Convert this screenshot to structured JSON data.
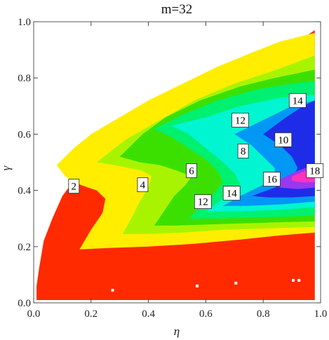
{
  "chart_data": {
    "type": "contour",
    "title": "m=32",
    "xlabel": "η",
    "ylabel": "γ",
    "xlim": [
      0.0,
      1.0
    ],
    "ylim": [
      0.0,
      1.0
    ],
    "x_ticks": [
      {
        "value": 0.0,
        "label": "0.0"
      },
      {
        "value": 0.2,
        "label": "0.2"
      },
      {
        "value": 0.4,
        "label": "0.4"
      },
      {
        "value": 0.6,
        "label": "0.6"
      },
      {
        "value": 0.8,
        "label": "0.8"
      },
      {
        "value": 1.0,
        "label": "1.0"
      }
    ],
    "y_ticks": [
      {
        "value": 0.0,
        "label": "0.0"
      },
      {
        "value": 0.2,
        "label": "0.2"
      },
      {
        "value": 0.4,
        "label": "0.4"
      },
      {
        "value": 0.6,
        "label": "0.6"
      },
      {
        "value": 0.8,
        "label": "0.8"
      },
      {
        "value": 1.0,
        "label": "1.0"
      }
    ],
    "grid": false,
    "levels": [
      {
        "level": 0,
        "color": "#ff2a00",
        "polygon": [
          [
            0.01,
            0.01
          ],
          [
            0.98,
            0.01
          ],
          [
            0.98,
            0.97
          ],
          [
            0.88,
            0.9
          ],
          [
            0.74,
            0.83
          ],
          [
            0.62,
            0.77
          ],
          [
            0.53,
            0.72
          ],
          [
            0.48,
            0.69
          ],
          [
            0.42,
            0.655
          ],
          [
            0.34,
            0.605
          ],
          [
            0.26,
            0.55
          ],
          [
            0.19,
            0.49
          ],
          [
            0.14,
            0.435
          ],
          [
            0.1,
            0.38
          ],
          [
            0.065,
            0.3
          ],
          [
            0.035,
            0.22
          ],
          [
            0.02,
            0.13
          ],
          [
            0.01,
            0.06
          ]
        ]
      },
      {
        "level": 2,
        "color": "#ffee00",
        "polygon": [
          [
            0.08,
            0.49
          ],
          [
            0.14,
            0.55
          ],
          [
            0.2,
            0.6
          ],
          [
            0.3,
            0.66
          ],
          [
            0.4,
            0.72
          ],
          [
            0.52,
            0.78
          ],
          [
            0.64,
            0.84
          ],
          [
            0.76,
            0.89
          ],
          [
            0.86,
            0.93
          ],
          [
            0.98,
            0.96
          ],
          [
            0.98,
            0.25
          ],
          [
            0.86,
            0.24
          ],
          [
            0.72,
            0.225
          ],
          [
            0.56,
            0.21
          ],
          [
            0.4,
            0.2
          ],
          [
            0.26,
            0.195
          ],
          [
            0.16,
            0.19
          ],
          [
            0.2,
            0.26
          ],
          [
            0.24,
            0.32
          ],
          [
            0.25,
            0.37
          ],
          [
            0.22,
            0.4
          ],
          [
            0.19,
            0.41
          ],
          [
            0.15,
            0.425
          ],
          [
            0.11,
            0.45
          ]
        ]
      },
      {
        "level": 4,
        "color": "#a8f400",
        "polygon": [
          [
            0.22,
            0.5
          ],
          [
            0.32,
            0.58
          ],
          [
            0.44,
            0.65
          ],
          [
            0.56,
            0.72
          ],
          [
            0.7,
            0.78
          ],
          [
            0.82,
            0.82
          ],
          [
            0.9,
            0.85
          ],
          [
            0.98,
            0.88
          ],
          [
            0.98,
            0.27
          ],
          [
            0.82,
            0.265
          ],
          [
            0.66,
            0.26
          ],
          [
            0.52,
            0.25
          ],
          [
            0.4,
            0.245
          ],
          [
            0.31,
            0.245
          ],
          [
            0.34,
            0.3
          ],
          [
            0.37,
            0.36
          ],
          [
            0.4,
            0.41
          ],
          [
            0.41,
            0.45
          ],
          [
            0.38,
            0.47
          ],
          [
            0.33,
            0.48
          ],
          [
            0.28,
            0.49
          ]
        ]
      },
      {
        "level": 6,
        "color": "#3ce000",
        "polygon": [
          [
            0.3,
            0.52
          ],
          [
            0.38,
            0.6
          ],
          [
            0.46,
            0.66
          ],
          [
            0.58,
            0.72
          ],
          [
            0.72,
            0.77
          ],
          [
            0.84,
            0.8
          ],
          [
            0.98,
            0.83
          ],
          [
            0.98,
            0.29
          ],
          [
            0.8,
            0.285
          ],
          [
            0.64,
            0.28
          ],
          [
            0.5,
            0.275
          ],
          [
            0.42,
            0.275
          ],
          [
            0.45,
            0.32
          ],
          [
            0.49,
            0.38
          ],
          [
            0.53,
            0.42
          ],
          [
            0.55,
            0.45
          ],
          [
            0.5,
            0.47
          ],
          [
            0.44,
            0.49
          ],
          [
            0.37,
            0.5
          ]
        ]
      },
      {
        "level": 8,
        "color": "#00f070",
        "polygon": [
          [
            0.42,
            0.62
          ],
          [
            0.52,
            0.67
          ],
          [
            0.64,
            0.72
          ],
          [
            0.78,
            0.76
          ],
          [
            0.9,
            0.78
          ],
          [
            0.98,
            0.79
          ],
          [
            0.98,
            0.31
          ],
          [
            0.82,
            0.305
          ],
          [
            0.66,
            0.3
          ],
          [
            0.54,
            0.3
          ],
          [
            0.58,
            0.34
          ],
          [
            0.63,
            0.39
          ],
          [
            0.66,
            0.43
          ],
          [
            0.64,
            0.47
          ],
          [
            0.6,
            0.51
          ],
          [
            0.54,
            0.55
          ],
          [
            0.48,
            0.59
          ]
        ]
      },
      {
        "level": 10,
        "color": "#00f5d0",
        "polygon": [
          [
            0.48,
            0.63
          ],
          [
            0.6,
            0.66
          ],
          [
            0.72,
            0.7
          ],
          [
            0.86,
            0.73
          ],
          [
            0.98,
            0.74
          ],
          [
            0.98,
            0.34
          ],
          [
            0.84,
            0.33
          ],
          [
            0.7,
            0.325
          ],
          [
            0.6,
            0.325
          ],
          [
            0.66,
            0.37
          ],
          [
            0.72,
            0.42
          ],
          [
            0.7,
            0.46
          ],
          [
            0.66,
            0.5
          ],
          [
            0.6,
            0.55
          ],
          [
            0.54,
            0.6
          ]
        ]
      },
      {
        "level": 12,
        "color": "#0098f4",
        "polygon": [
          [
            0.7,
            0.6
          ],
          [
            0.8,
            0.65
          ],
          [
            0.9,
            0.7
          ],
          [
            0.98,
            0.72
          ],
          [
            0.98,
            0.36
          ],
          [
            0.86,
            0.35
          ],
          [
            0.74,
            0.345
          ],
          [
            0.66,
            0.345
          ],
          [
            0.72,
            0.38
          ],
          [
            0.78,
            0.41
          ],
          [
            0.84,
            0.44
          ],
          [
            0.84,
            0.48
          ],
          [
            0.8,
            0.52
          ],
          [
            0.76,
            0.56
          ]
        ]
      },
      {
        "level": 14,
        "color": "#1e2ce8",
        "polygon": [
          [
            0.8,
            0.6
          ],
          [
            0.88,
            0.66
          ],
          [
            0.94,
            0.7
          ],
          [
            0.98,
            0.72
          ],
          [
            0.98,
            0.38
          ],
          [
            0.9,
            0.375
          ],
          [
            0.82,
            0.375
          ],
          [
            0.76,
            0.38
          ],
          [
            0.84,
            0.41
          ],
          [
            0.9,
            0.44
          ],
          [
            0.92,
            0.48
          ],
          [
            0.9,
            0.52
          ],
          [
            0.86,
            0.56
          ]
        ]
      },
      {
        "level": 16,
        "color": "#9a38f0",
        "polygon": [
          [
            0.86,
            0.44
          ],
          [
            0.92,
            0.47
          ],
          [
            0.98,
            0.49
          ],
          [
            0.98,
            0.41
          ],
          [
            0.92,
            0.405
          ],
          [
            0.86,
            0.41
          ],
          [
            0.84,
            0.425
          ]
        ]
      },
      {
        "level": 18,
        "color": "#ff33bb",
        "polygon": [
          [
            0.9,
            0.45
          ],
          [
            0.95,
            0.47
          ],
          [
            0.98,
            0.475
          ],
          [
            0.98,
            0.43
          ],
          [
            0.94,
            0.428
          ],
          [
            0.9,
            0.435
          ]
        ]
      }
    ],
    "contour_labels": [
      {
        "text": "2",
        "x": 0.14,
        "y": 0.415
      },
      {
        "text": "4",
        "x": 0.38,
        "y": 0.42
      },
      {
        "text": "6",
        "x": 0.55,
        "y": 0.47
      },
      {
        "text": "8",
        "x": 0.73,
        "y": 0.54
      },
      {
        "text": "10",
        "x": 0.87,
        "y": 0.58
      },
      {
        "text": "12",
        "x": 0.72,
        "y": 0.65
      },
      {
        "text": "12",
        "x": 0.59,
        "y": 0.36
      },
      {
        "text": "14",
        "x": 0.69,
        "y": 0.39
      },
      {
        "text": "14",
        "x": 0.92,
        "y": 0.72
      },
      {
        "text": "16",
        "x": 0.83,
        "y": 0.44
      },
      {
        "text": "18",
        "x": 0.98,
        "y": 0.47
      }
    ],
    "holes": [
      {
        "x": 0.275,
        "y": 0.045
      },
      {
        "x": 0.57,
        "y": 0.06
      },
      {
        "x": 0.705,
        "y": 0.07
      },
      {
        "x": 0.905,
        "y": 0.08
      },
      {
        "x": 0.925,
        "y": 0.08
      }
    ]
  }
}
